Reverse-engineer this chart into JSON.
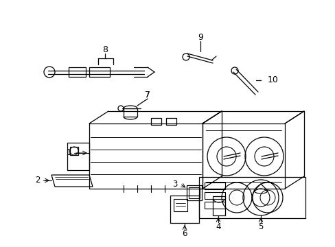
{
  "background_color": "#ffffff",
  "line_color": "#000000",
  "fig_width": 4.89,
  "fig_height": 3.6,
  "dpi": 100,
  "lw": 0.9
}
